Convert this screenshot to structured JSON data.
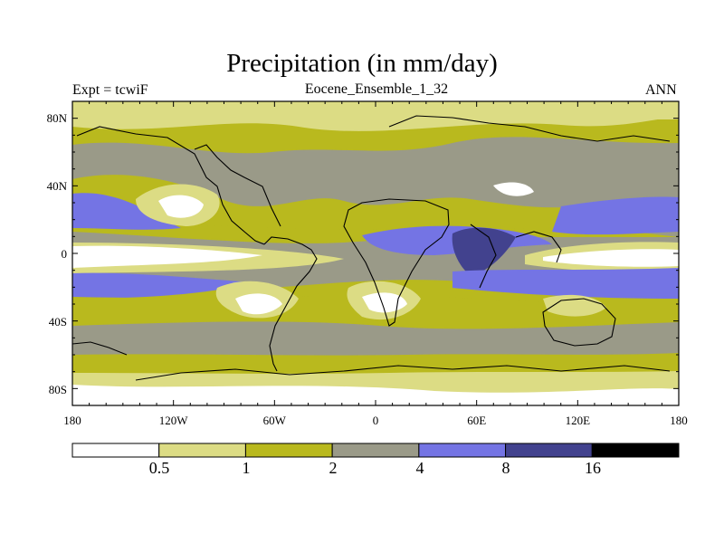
{
  "title": "Precipitation (in mm/day)",
  "left_label": "Expt = tcwiF",
  "center_label": "Eocene_Ensemble_1_32",
  "right_label": "ANN",
  "lat_ticks": [
    "80N",
    "40N",
    "0",
    "40S",
    "80S"
  ],
  "lon_ticks": [
    "180",
    "120W",
    "60W",
    "0",
    "60E",
    "120E",
    "180"
  ],
  "colorbar": {
    "colors": [
      "#ffffff",
      "#dcdc84",
      "#b9b91e",
      "#9a9a88",
      "#7474e4",
      "#42428e",
      "#000000"
    ],
    "labels": [
      "0.5",
      "1",
      "2",
      "4",
      "8",
      "16"
    ]
  }
}
